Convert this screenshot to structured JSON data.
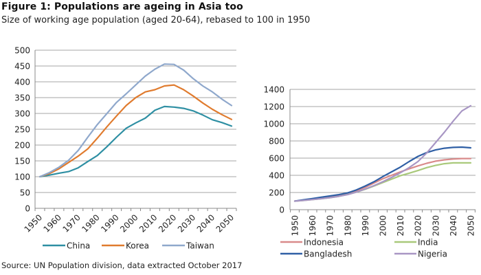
{
  "figure": {
    "title": "Figure 1: Populations are ageing in Asia too",
    "subtitle": "Size of working age population  (aged 20-64), rebased to 100 in 1950",
    "source": "Source: UN Population division, data extracted October 2017"
  },
  "chart_data": [
    {
      "type": "line",
      "title": "",
      "xlabel": "",
      "ylabel": "",
      "ylim": [
        0,
        500
      ],
      "yticks": [
        0,
        50,
        100,
        150,
        200,
        250,
        300,
        350,
        400,
        450,
        500
      ],
      "x": [
        1950,
        1955,
        1960,
        1965,
        1970,
        1975,
        1980,
        1985,
        1990,
        1995,
        2000,
        2005,
        2010,
        2015,
        2020,
        2025,
        2030,
        2035,
        2040,
        2045,
        2050
      ],
      "xtick_labels": [
        "1950",
        "1960",
        "1970",
        "1980",
        "1990",
        "2000",
        "2010",
        "2020",
        "2030",
        "2040",
        "2050"
      ],
      "grid": true,
      "legend_position": "bottom",
      "series": [
        {
          "name": "China",
          "color": "#2e8fa3",
          "values": [
            100,
            105,
            111,
            116,
            128,
            148,
            167,
            195,
            225,
            253,
            270,
            285,
            310,
            322,
            320,
            316,
            308,
            295,
            280,
            271,
            260
          ]
        },
        {
          "name": "Korea",
          "color": "#e07b2e",
          "values": [
            100,
            110,
            125,
            145,
            165,
            188,
            222,
            258,
            292,
            325,
            350,
            368,
            375,
            387,
            390,
            375,
            355,
            333,
            313,
            296,
            281
          ]
        },
        {
          "name": "Taiwan",
          "color": "#8fa8cc",
          "values": [
            100,
            113,
            130,
            152,
            183,
            225,
            265,
            300,
            335,
            362,
            390,
            418,
            440,
            456,
            455,
            437,
            410,
            387,
            368,
            345,
            325
          ]
        }
      ]
    },
    {
      "type": "line",
      "title": "",
      "xlabel": "",
      "ylabel": "",
      "ylim": [
        0,
        1400
      ],
      "yticks": [
        0,
        200,
        400,
        600,
        800,
        1000,
        1200,
        1400
      ],
      "x": [
        1950,
        1955,
        1960,
        1965,
        1970,
        1975,
        1980,
        1985,
        1990,
        1995,
        2000,
        2005,
        2010,
        2015,
        2020,
        2025,
        2030,
        2035,
        2040,
        2045,
        2050
      ],
      "xtick_labels": [
        "1950",
        "1960",
        "1970",
        "1980",
        "1990",
        "2000",
        "2010",
        "2020",
        "2030",
        "2040",
        "2050"
      ],
      "grid": true,
      "legend_position": "bottom",
      "series": [
        {
          "name": "Indonesia",
          "color": "#d98a8a",
          "values": [
            100,
            110,
            122,
            135,
            150,
            168,
            190,
            220,
            260,
            310,
            360,
            400,
            440,
            475,
            510,
            540,
            565,
            580,
            590,
            595,
            595
          ]
        },
        {
          "name": "India",
          "color": "#a9c97a",
          "values": [
            100,
            108,
            118,
            128,
            140,
            155,
            178,
            205,
            238,
            275,
            315,
            355,
            395,
            425,
            455,
            490,
            515,
            535,
            545,
            545,
            545
          ]
        },
        {
          "name": "Bangladesh",
          "color": "#2f5fa5",
          "values": [
            100,
            115,
            130,
            145,
            160,
            175,
            195,
            230,
            275,
            325,
            385,
            440,
            495,
            560,
            620,
            665,
            695,
            715,
            725,
            728,
            720
          ]
        },
        {
          "name": "Nigeria",
          "color": "#a896c4",
          "values": [
            100,
            108,
            118,
            128,
            140,
            155,
            175,
            205,
            240,
            280,
            325,
            375,
            430,
            490,
            560,
            660,
            780,
            900,
            1030,
            1150,
            1210
          ]
        }
      ]
    }
  ]
}
